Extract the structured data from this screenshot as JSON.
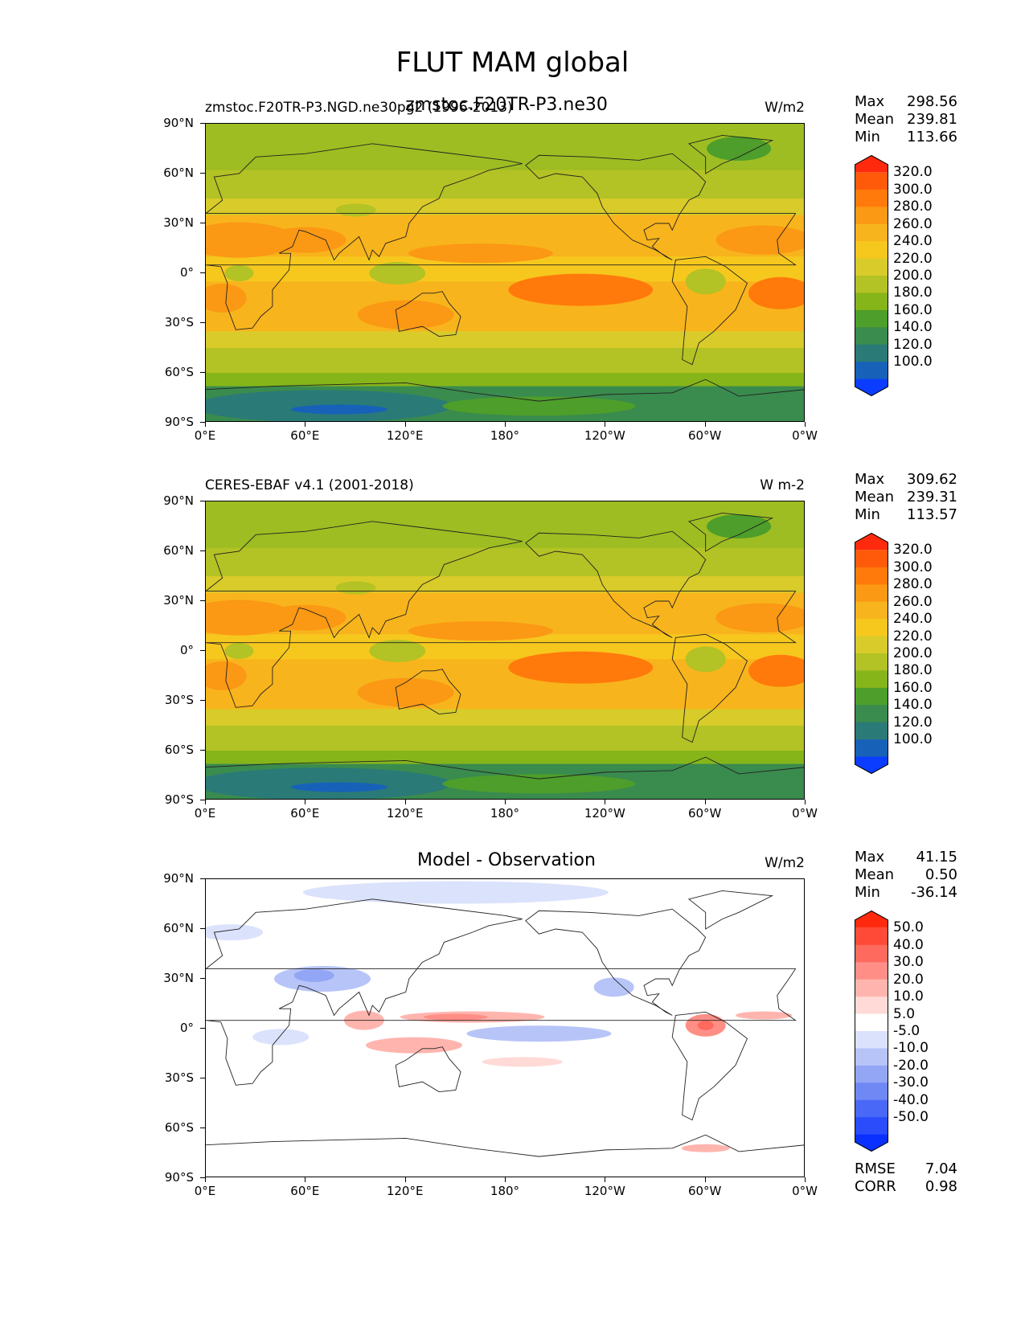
{
  "figure_title": "FLUT MAM global",
  "panels": [
    {
      "left_title": "zmstoc.F20TR-P3.NGD.ne30pg2 (1996-2013)",
      "center_title": "zmstoc.F20TR-P3.ne30",
      "right_title": "W/m2",
      "stats": {
        "max_label": "Max",
        "max": "298.56",
        "mean_label": "Mean",
        "mean": "239.81",
        "min_label": "Min",
        "min": "113.66"
      }
    },
    {
      "left_title": "CERES-EBAF v4.1 (2001-2018)",
      "right_title": "W m-2",
      "stats": {
        "max_label": "Max",
        "max": "309.62",
        "mean_label": "Mean",
        "mean": "239.31",
        "min_label": "Min",
        "min": "113.57"
      }
    },
    {
      "center_title": "Model - Observation",
      "right_title": "W/m2",
      "stats": {
        "max_label": "Max",
        "max": "41.15",
        "mean_label": "Mean",
        "mean": "0.50",
        "min_label": "Min",
        "min": "-36.14"
      },
      "extra_stats": {
        "rmse_label": "RMSE",
        "rmse": "7.04",
        "corr_label": "CORR",
        "corr": "0.98"
      }
    }
  ],
  "lat_ticks": [
    "90°N",
    "60°N",
    "30°N",
    "0°",
    "30°S",
    "60°S",
    "90°S"
  ],
  "lon_ticks": [
    "0°E",
    "60°E",
    "120°E",
    "180°",
    "120°W",
    "60°W",
    "0°W"
  ],
  "colorbar_main": {
    "labels": [
      "320.0",
      "300.0",
      "280.0",
      "260.0",
      "240.0",
      "220.0",
      "200.0",
      "180.0",
      "160.0",
      "140.0",
      "120.0",
      "100.0"
    ],
    "colors_top_to_bottom": [
      "#ff2a0e",
      "#ff5a0a",
      "#ff7a0a",
      "#fb9814",
      "#f8b41c",
      "#f6c81e",
      "#d8cb2a",
      "#b3c224",
      "#86b51a",
      "#4d9e2a",
      "#3a8b4e",
      "#2a7a78",
      "#1762b8",
      "#0a3dff"
    ]
  },
  "colorbar_diff": {
    "labels": [
      "50.0",
      "40.0",
      "30.0",
      "20.0",
      "10.0",
      "5.0",
      "-5.0",
      "-10.0",
      "-20.0",
      "-30.0",
      "-40.0",
      "-50.0"
    ],
    "colors_top_to_bottom": [
      "#ff2a0e",
      "#ff4a38",
      "#ff6a5e",
      "#ff8f86",
      "#ffb5ae",
      "#ffdad6",
      "#ffffff",
      "#dbe2fc",
      "#b7c4f8",
      "#93a6f6",
      "#6f88f4",
      "#4a68f8",
      "#2a4cfa",
      "#0a30ff"
    ]
  }
}
